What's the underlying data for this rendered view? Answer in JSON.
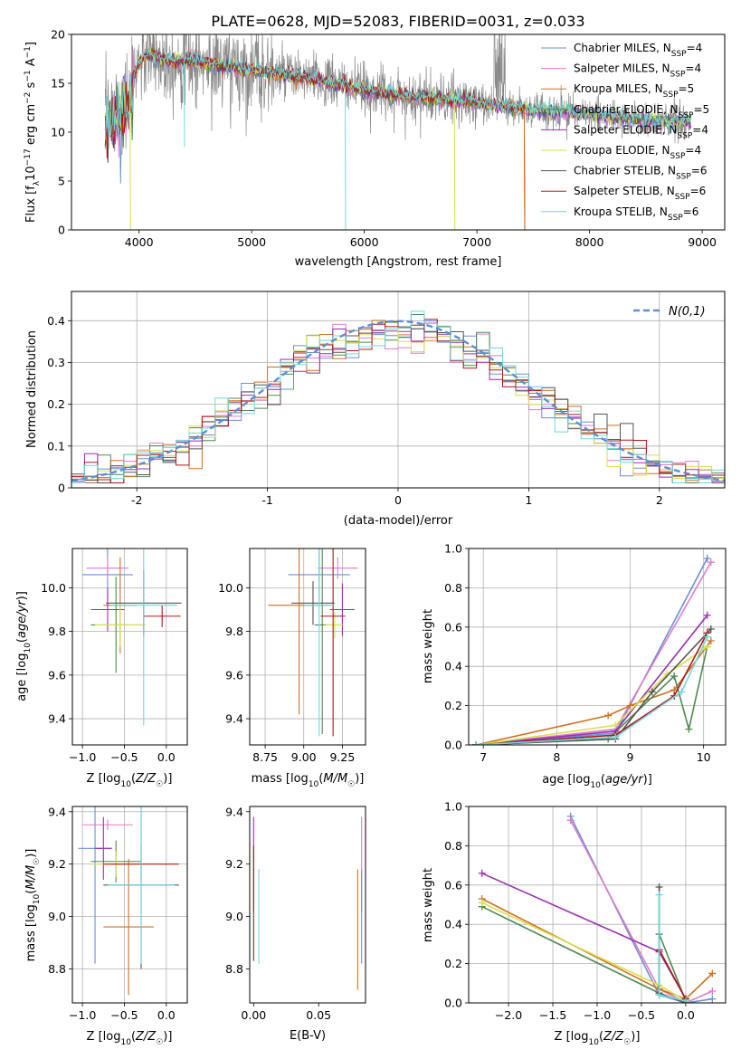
{
  "figure_title": "PLATE=0628, MJD=52083, FIBERID=0031, z=0.033",
  "colors": {
    "chabrier_miles": "#6a8fd8",
    "salpeter_miles": "#e07bc8",
    "kroupa_miles": "#d07020",
    "chabrier_elodie": "#4d8a52",
    "salpeter_elodie": "#9a2fb0",
    "kroupa_elodie": "#d7e04a",
    "chabrier_stelib": "#555555",
    "salpeter_stelib": "#b01818",
    "kroupa_stelib": "#6fd8d8",
    "normal": "#5b8fd6",
    "grid": "#b0b0b0"
  },
  "chart_data": [
    {
      "id": "spectrum",
      "type": "line",
      "title": "PLATE=0628, MJD=52083, FIBERID=0031, z=0.033",
      "xlabel": "wavelength [Angstrom, rest frame]",
      "ylabel": "Flux [f_λ10^-17 erg cm^-2 s^-1 A^-1]",
      "xlim": [
        3400,
        9200
      ],
      "ylim": [
        0,
        20
      ],
      "xticks": [
        4000,
        5000,
        6000,
        7000,
        8000,
        9000
      ],
      "yticks": [
        0,
        5,
        10,
        15,
        20
      ],
      "grid": false,
      "legend_position": "top-right",
      "legend": [
        "Chabrier MILES, N_SSP=4",
        "Salpeter MILES, N_SSP=4",
        "Kroupa MILES, N_SSP=5",
        "Chabrier ELODIE, N_SSP=5",
        "Salpeter ELODIE, N_SSP=4",
        "Kroupa ELODIE, N_SSP=4",
        "Chabrier STELIB, N_SSP=6",
        "Salpeter STELIB, N_SSP=6",
        "Kroupa STELIB, N_SSP=6"
      ],
      "data_range": [
        3700,
        8900
      ],
      "model_continuum": [
        [
          3700,
          12
        ],
        [
          3800,
          13
        ],
        [
          3900,
          14
        ],
        [
          4000,
          17.2
        ],
        [
          4100,
          18
        ],
        [
          4200,
          17.5
        ],
        [
          4400,
          17.2
        ],
        [
          4600,
          17
        ],
        [
          5000,
          16.3
        ],
        [
          5500,
          15.5
        ],
        [
          6000,
          14.3
        ],
        [
          6500,
          13.5
        ],
        [
          7000,
          13
        ],
        [
          7500,
          12.3
        ],
        [
          8000,
          11.8
        ],
        [
          8500,
          11.2
        ],
        [
          8900,
          11
        ]
      ],
      "dropouts": [
        [
          3920,
          0
        ],
        [
          4400,
          8.5
        ],
        [
          5830,
          0
        ],
        [
          6800,
          0
        ],
        [
          7420,
          0
        ],
        [
          8700,
          10
        ]
      ]
    },
    {
      "id": "residuals",
      "type": "histogram",
      "xlabel": "(data-model)/error",
      "ylabel": "Normed distribution",
      "xlim": [
        -2.5,
        2.5
      ],
      "ylim": [
        0,
        0.47
      ],
      "xticks": [
        -2,
        -1,
        0,
        1,
        2
      ],
      "yticks": [
        0.0,
        0.1,
        0.2,
        0.3,
        0.4
      ],
      "grid": true,
      "legend_position": "top-right",
      "legend": [
        "N(0,1)"
      ],
      "bin_width": 0.1,
      "bin_start": -2.5
    },
    {
      "id": "age_vs_Z",
      "type": "errorbar",
      "xlabel": "Z [log10(Z/Z☉)]",
      "ylabel": "age  [log10(age/yr)]",
      "xlim": [
        -1.12,
        0.25
      ],
      "ylim": [
        9.28,
        10.18
      ],
      "xticks": [
        -1.0,
        -0.5,
        0.0
      ],
      "xtick_labels": [
        "−1.0",
        "−0.5",
        "0.0"
      ],
      "yticks": [
        9.4,
        9.6,
        9.8,
        10.0
      ],
      "ytick_labels": [
        "9.4",
        "9.6",
        "9.8",
        "10.0"
      ],
      "grid": true,
      "points": [
        {
          "x": -0.7,
          "y": 10.06,
          "xerr": 0.3,
          "yerr": 0.12,
          "series": "chabrier_miles"
        },
        {
          "x": -0.7,
          "y": 10.09,
          "xerr": 0.25,
          "yerr": 0.05,
          "series": "salpeter_miles"
        },
        {
          "x": -0.55,
          "y": 9.92,
          "xerr": 0.2,
          "yerr": 0.22,
          "series": "kroupa_miles"
        },
        {
          "x": -0.6,
          "y": 9.83,
          "xerr": 0.3,
          "yerr": 0.22,
          "series": "chabrier_elodie"
        },
        {
          "x": -0.7,
          "y": 9.9,
          "xerr": 0.2,
          "yerr": 0.1,
          "series": "salpeter_elodie"
        },
        {
          "x": -0.55,
          "y": 9.83,
          "xerr": 0.3,
          "yerr": 0.1,
          "series": "kroupa_elodie"
        },
        {
          "x": -0.27,
          "y": 9.93,
          "xerr": 0.45,
          "yerr": 0.15,
          "series": "chabrier_stelib"
        },
        {
          "x": -0.05,
          "y": 9.87,
          "xerr": 0.22,
          "yerr": 0.05,
          "series": "salpeter_stelib"
        },
        {
          "x": -0.27,
          "y": 9.92,
          "xerr": 0.4,
          "yerr": 0.55,
          "series": "kroupa_stelib"
        }
      ]
    },
    {
      "id": "age_vs_mass",
      "type": "errorbar",
      "xlabel": "mass [log10(M/M☉)]",
      "xlim": [
        8.65,
        9.4
      ],
      "ylim": [
        9.28,
        10.18
      ],
      "xticks": [
        8.75,
        9.0,
        9.25
      ],
      "xtick_labels": [
        "8.75",
        "9.00",
        "9.25"
      ],
      "yticks": [
        9.4,
        9.6,
        9.8,
        10.0
      ],
      "ytick_labels": [
        "9.4",
        "9.6",
        "9.8",
        "10.0"
      ],
      "grid": true,
      "points": [
        {
          "x": 9.1,
          "y": 10.06,
          "xerr": 0.2,
          "yerr": 0.12,
          "series": "chabrier_miles"
        },
        {
          "x": 9.22,
          "y": 10.09,
          "xerr": 0.13,
          "yerr": 0.05,
          "series": "salpeter_miles"
        },
        {
          "x": 8.97,
          "y": 9.92,
          "xerr": 0.2,
          "yerr": 0.5,
          "series": "kroupa_miles"
        },
        {
          "x": 9.12,
          "y": 9.83,
          "xerr": 0.05,
          "yerr": 0.5,
          "series": "chabrier_elodie"
        },
        {
          "x": 9.25,
          "y": 9.9,
          "xerr": 0.08,
          "yerr": 0.12,
          "series": "salpeter_elodie"
        },
        {
          "x": 9.2,
          "y": 9.83,
          "xerr": 0.06,
          "yerr": 0.06,
          "series": "kroupa_elodie"
        },
        {
          "x": 9.06,
          "y": 9.93,
          "xerr": 0.14,
          "yerr": 0.1,
          "series": "chabrier_stelib"
        },
        {
          "x": 9.19,
          "y": 9.87,
          "xerr": 0.08,
          "yerr": 0.55,
          "series": "salpeter_stelib"
        },
        {
          "x": 9.1,
          "y": 9.92,
          "xerr": 0.1,
          "yerr": 0.6,
          "series": "kroupa_stelib"
        }
      ]
    },
    {
      "id": "massweight_vs_age",
      "type": "line",
      "xlabel": "age  [log10(age/yr)]",
      "ylabel": "mass weight",
      "xlim": [
        6.8,
        10.3
      ],
      "ylim": [
        0,
        1
      ],
      "xticks": [
        7,
        8,
        9,
        10
      ],
      "xtick_labels": [
        "7",
        "8",
        "9",
        "10"
      ],
      "yticks": [
        0.0,
        0.2,
        0.4,
        0.6,
        0.8,
        1.0
      ],
      "ytick_labels": [
        "0.0",
        "0.2",
        "0.4",
        "0.6",
        "0.8",
        "1.0"
      ],
      "grid": true,
      "series": [
        {
          "key": "chabrier_miles",
          "points": [
            [
              6.9,
              0
            ],
            [
              8.8,
              0.06
            ],
            [
              10.05,
              0.95
            ]
          ]
        },
        {
          "key": "salpeter_miles",
          "points": [
            [
              6.9,
              0
            ],
            [
              8.8,
              0.08
            ],
            [
              10.1,
              0.93
            ]
          ]
        },
        {
          "key": "kroupa_miles",
          "points": [
            [
              6.9,
              0
            ],
            [
              8.7,
              0.15
            ],
            [
              9.0,
              0.2
            ],
            [
              9.6,
              0.28
            ],
            [
              10.1,
              0.53
            ]
          ]
        },
        {
          "key": "chabrier_elodie",
          "points": [
            [
              6.9,
              0
            ],
            [
              8.7,
              0.03
            ],
            [
              9.6,
              0.35
            ],
            [
              9.8,
              0.08
            ],
            [
              10.05,
              0.5
            ]
          ]
        },
        {
          "key": "salpeter_elodie",
          "points": [
            [
              6.9,
              0
            ],
            [
              8.8,
              0.07
            ],
            [
              10.05,
              0.66
            ]
          ]
        },
        {
          "key": "kroupa_elodie",
          "points": [
            [
              6.9,
              0
            ],
            [
              8.8,
              0.1
            ],
            [
              9.5,
              0.36
            ],
            [
              10.05,
              0.5
            ]
          ]
        },
        {
          "key": "chabrier_stelib",
          "points": [
            [
              6.9,
              0
            ],
            [
              8.8,
              0.03
            ],
            [
              9.3,
              0.27
            ],
            [
              10.1,
              0.59
            ]
          ]
        },
        {
          "key": "salpeter_stelib",
          "points": [
            [
              6.9,
              0
            ],
            [
              8.8,
              0.05
            ],
            [
              9.6,
              0.25
            ],
            [
              10.05,
              0.57
            ]
          ]
        },
        {
          "key": "kroupa_stelib",
          "points": [
            [
              6.9,
              0
            ],
            [
              8.8,
              0.04
            ],
            [
              9.7,
              0.27
            ],
            [
              10.05,
              0.55
            ]
          ]
        }
      ]
    },
    {
      "id": "mass_vs_Z",
      "type": "errorbar",
      "xlabel": "Z [log10(Z/Z☉)]",
      "ylabel": "mass [log10(M/M☉)]",
      "xlim": [
        -1.12,
        0.25
      ],
      "ylim": [
        8.67,
        9.42
      ],
      "xticks": [
        -1.0,
        -0.5,
        0.0
      ],
      "xtick_labels": [
        "−1.0",
        "−0.5",
        "0.0"
      ],
      "yticks": [
        8.8,
        9.0,
        9.2,
        9.4
      ],
      "ytick_labels": [
        "8.8",
        "9.0",
        "9.2",
        "9.4"
      ],
      "grid": true,
      "points": [
        {
          "x": -0.85,
          "y": 9.26,
          "xerr": 0.2,
          "yerr": 0.44,
          "series": "chabrier_miles"
        },
        {
          "x": -0.7,
          "y": 9.35,
          "xerr": 0.3,
          "yerr": 0.02,
          "series": "salpeter_miles"
        },
        {
          "x": -0.45,
          "y": 8.96,
          "xerr": 0.3,
          "yerr": 0.26,
          "series": "kroupa_miles"
        },
        {
          "x": -0.6,
          "y": 9.21,
          "xerr": 0.3,
          "yerr": 0.08,
          "series": "chabrier_elodie"
        },
        {
          "x": -0.75,
          "y": 9.26,
          "xerr": 0.1,
          "yerr": 0.12,
          "series": "salpeter_elodie"
        },
        {
          "x": -0.6,
          "y": 9.2,
          "xerr": 0.3,
          "yerr": 0.05,
          "series": "kroupa_elodie"
        },
        {
          "x": -0.3,
          "y": 9.12,
          "xerr": 0.45,
          "yerr": 0.32,
          "series": "chabrier_stelib"
        },
        {
          "x": -0.3,
          "y": 9.2,
          "xerr": 0.45,
          "yerr": 0.07,
          "series": "salpeter_stelib"
        },
        {
          "x": -0.3,
          "y": 9.12,
          "xerr": 0.4,
          "yerr": 0.3,
          "series": "kroupa_stelib"
        }
      ]
    },
    {
      "id": "mass_vs_ebv",
      "type": "errorbar",
      "xlabel": "E(B-V)",
      "xlim": [
        -0.003,
        0.086
      ],
      "ylim": [
        8.67,
        9.42
      ],
      "xticks": [
        0.0,
        0.05
      ],
      "xtick_labels": [
        "0.00",
        "0.05"
      ],
      "yticks": [
        8.8,
        9.0,
        9.2,
        9.4
      ],
      "ytick_labels": [
        "8.8",
        "9.0",
        "9.2",
        "9.4"
      ],
      "grid": false,
      "points": [
        {
          "x": 0.0,
          "y": 9.2,
          "xerr": 0,
          "yerr": 0.18,
          "series": "salpeter_elodie"
        },
        {
          "x": 0.0,
          "y": 9.05,
          "xerr": 0,
          "yerr": 0.22,
          "series": "salpeter_stelib"
        },
        {
          "x": 0.004,
          "y": 9.0,
          "xerr": 0,
          "yerr": 0.18,
          "series": "kroupa_stelib"
        },
        {
          "x": 0.08,
          "y": 8.95,
          "xerr": 0,
          "yerr": 0.23,
          "series": "kroupa_miles"
        },
        {
          "x": 0.083,
          "y": 9.2,
          "xerr": 0,
          "yerr": 0.18,
          "series": "salpeter_miles"
        },
        {
          "x": 0.083,
          "y": 9.0,
          "xerr": 0,
          "yerr": 0.18,
          "series": "chabrier_miles"
        }
      ]
    },
    {
      "id": "massweight_vs_Z",
      "type": "line",
      "xlabel": "Z [log10(Z/Z☉)]",
      "ylabel": "mass weight",
      "xlim": [
        -2.45,
        0.45
      ],
      "ylim": [
        0,
        1
      ],
      "xticks": [
        -2.0,
        -1.5,
        -1.0,
        -0.5,
        0.0
      ],
      "xtick_labels": [
        "−2.0",
        "−1.5",
        "−1.0",
        "−0.5",
        "0.0"
      ],
      "yticks": [
        0.0,
        0.2,
        0.4,
        0.6,
        0.8,
        1.0
      ],
      "ytick_labels": [
        "0.0",
        "0.2",
        "0.4",
        "0.6",
        "0.8",
        "1.0"
      ],
      "grid": true,
      "series": [
        {
          "key": "chabrier_miles",
          "points": [
            [
              -1.3,
              0.95
            ],
            [
              -0.3,
              0.04
            ],
            [
              0,
              0.0
            ],
            [
              0.3,
              0.02
            ]
          ]
        },
        {
          "key": "salpeter_miles",
          "points": [
            [
              -1.3,
              0.93
            ],
            [
              -0.3,
              0.07
            ],
            [
              0,
              0.0
            ],
            [
              0.3,
              0.06
            ]
          ]
        },
        {
          "key": "kroupa_miles",
          "points": [
            [
              -2.3,
              0.53
            ],
            [
              -0.3,
              0.07
            ],
            [
              0,
              0.02
            ],
            [
              0.3,
              0.15
            ]
          ]
        },
        {
          "key": "chabrier_elodie",
          "points": [
            [
              -2.3,
              0.49
            ],
            [
              -0.3,
              0.05
            ],
            [
              -0.3,
              0.35
            ],
            [
              0,
              0.01
            ]
          ]
        },
        {
          "key": "salpeter_elodie",
          "points": [
            [
              -2.3,
              0.66
            ],
            [
              -0.3,
              0.26
            ],
            [
              0,
              0.02
            ]
          ]
        },
        {
          "key": "kroupa_elodie",
          "points": [
            [
              -2.3,
              0.51
            ],
            [
              -0.3,
              0.09
            ],
            [
              0,
              0.01
            ]
          ]
        },
        {
          "key": "chabrier_stelib",
          "points": [
            [
              -0.3,
              0.59
            ],
            [
              -0.3,
              0.05
            ],
            [
              0,
              0.0
            ]
          ]
        },
        {
          "key": "salpeter_stelib",
          "points": [
            [
              -0.3,
              0.27
            ],
            [
              0,
              0.02
            ]
          ]
        },
        {
          "key": "kroupa_stelib",
          "points": [
            [
              -0.3,
              0.55
            ],
            [
              -0.3,
              0.04
            ],
            [
              0,
              0.01
            ]
          ]
        }
      ]
    }
  ]
}
